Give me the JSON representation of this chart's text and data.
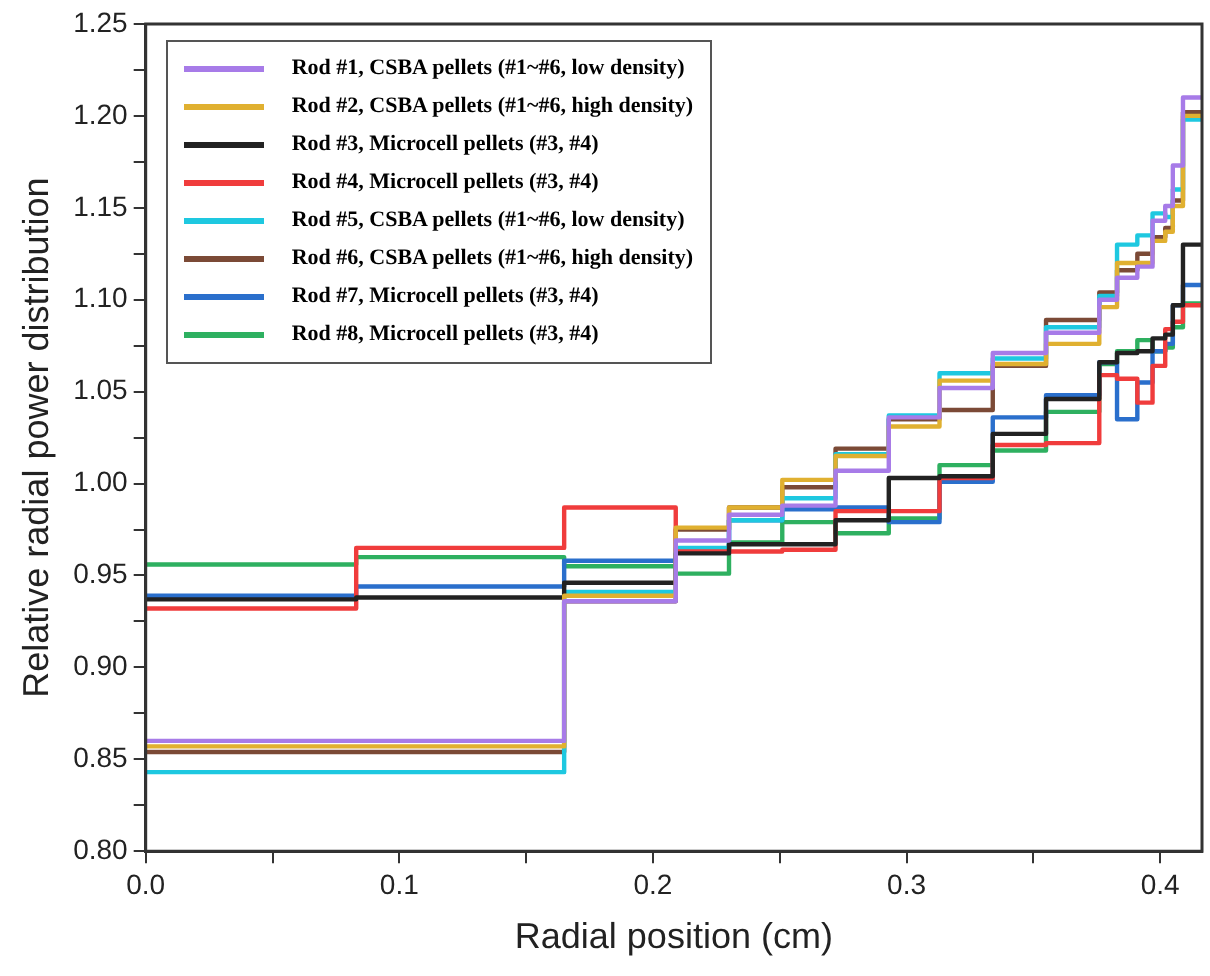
{
  "chart_data": {
    "type": "step",
    "xlabel": "Radial position (cm)",
    "ylabel": "Relative radial power distribution",
    "x": [
      0,
      0.083,
      0.165,
      0.209,
      0.23,
      0.251,
      0.272,
      0.293,
      0.313,
      0.334,
      0.355,
      0.376,
      0.383,
      0.391,
      0.397,
      0.402,
      0.405,
      0.409,
      0.4165
    ],
    "xlim": [
      0,
      0.4165
    ],
    "xticks": [
      {
        "value": 0,
        "label": "0.0"
      },
      {
        "value": 0.05,
        "label": null
      },
      {
        "value": 0.1,
        "label": "0.1"
      },
      {
        "value": 0.15,
        "label": null
      },
      {
        "value": 0.2,
        "label": "0.2"
      },
      {
        "value": 0.25,
        "label": null
      },
      {
        "value": 0.3,
        "label": "0.3"
      },
      {
        "value": 0.35,
        "label": null
      },
      {
        "value": 0.4,
        "label": "0.4"
      }
    ],
    "ylim": [
      0.8,
      1.25
    ],
    "yticks": [
      {
        "value": 0.8,
        "label": "0.80"
      },
      {
        "value": 0.825,
        "label": null
      },
      {
        "value": 0.85,
        "label": "0.85"
      },
      {
        "value": 0.875,
        "label": null
      },
      {
        "value": 0.9,
        "label": "0.90"
      },
      {
        "value": 0.925,
        "label": null
      },
      {
        "value": 0.95,
        "label": "0.95"
      },
      {
        "value": 0.975,
        "label": null
      },
      {
        "value": 1.0,
        "label": "1.00"
      },
      {
        "value": 1.025,
        "label": null
      },
      {
        "value": 1.05,
        "label": "1.05"
      },
      {
        "value": 1.075,
        "label": null
      },
      {
        "value": 1.1,
        "label": "1.10"
      },
      {
        "value": 1.125,
        "label": null
      },
      {
        "value": 1.15,
        "label": "1.15"
      },
      {
        "value": 1.175,
        "label": null
      },
      {
        "value": 1.2,
        "label": "1.20"
      },
      {
        "value": 1.225,
        "label": null
      },
      {
        "value": 1.25,
        "label": "1.25"
      }
    ],
    "grid": false,
    "legend": "top left",
    "marker": "none",
    "line_style": "solid",
    "series": [
      {
        "name": "Rod #1, CSBA pellets (#1~#6, low density)",
        "color": "#a77be8",
        "values": [
          0.86,
          0.86,
          0.936,
          0.969,
          0.983,
          0.988,
          1.007,
          1.036,
          1.052,
          1.071,
          1.082,
          1.1,
          1.112,
          1.118,
          1.143,
          1.151,
          1.173,
          1.21,
          1.21
        ]
      },
      {
        "name": "Rod #2, CSBA pellets (#1~#6, high density)",
        "color": "#e0b030",
        "values": [
          0.857,
          0.857,
          0.939,
          0.976,
          0.987,
          1.002,
          1.015,
          1.031,
          1.056,
          1.065,
          1.076,
          1.096,
          1.12,
          1.12,
          1.132,
          1.137,
          1.151,
          1.2,
          1.2
        ]
      },
      {
        "name": "Rod #3, Microcell pellets (#3, #4)",
        "color": "#222222",
        "values": [
          0.937,
          0.938,
          0.946,
          0.962,
          0.967,
          0.967,
          0.98,
          1.003,
          1.004,
          1.027,
          1.046,
          1.066,
          1.071,
          1.072,
          1.079,
          1.081,
          1.097,
          1.13,
          1.13
        ]
      },
      {
        "name": "Rod #4, Microcell pellets (#3, #4)",
        "color": "#f03c3c",
        "values": [
          0.932,
          0.965,
          0.987,
          0.963,
          0.963,
          0.964,
          0.985,
          0.985,
          1.003,
          1.021,
          1.022,
          1.059,
          1.057,
          1.044,
          1.064,
          1.084,
          1.088,
          1.097,
          1.097
        ]
      },
      {
        "name": "Rod #5, CSBA pellets (#1~#6, low density)",
        "color": "#1ec8e0",
        "values": [
          0.843,
          0.843,
          0.941,
          0.965,
          0.98,
          0.992,
          1.016,
          1.037,
          1.06,
          1.068,
          1.085,
          1.102,
          1.13,
          1.135,
          1.147,
          1.145,
          1.16,
          1.198,
          1.198
        ]
      },
      {
        "name": "Rod #6, CSBA pellets (#1~#6, high density)",
        "color": "#7b4a36",
        "values": [
          0.854,
          0.854,
          0.936,
          0.975,
          0.987,
          0.998,
          1.019,
          1.035,
          1.04,
          1.064,
          1.089,
          1.104,
          1.116,
          1.125,
          1.134,
          1.139,
          1.154,
          1.202,
          1.202
        ]
      },
      {
        "name": "Rod #7, Microcell pellets (#3, #4)",
        "color": "#2a6fcc",
        "values": [
          0.939,
          0.944,
          0.958,
          0.964,
          0.98,
          0.986,
          0.987,
          0.979,
          1.001,
          1.036,
          1.048,
          1.066,
          1.035,
          1.055,
          1.072,
          1.076,
          1.097,
          1.108,
          1.108
        ]
      },
      {
        "name": "Rod #8, Microcell pellets (#3, #4)",
        "color": "#2eb060",
        "values": [
          0.956,
          0.96,
          0.955,
          0.951,
          0.968,
          0.979,
          0.973,
          0.981,
          1.01,
          1.018,
          1.039,
          1.065,
          1.072,
          1.078,
          1.072,
          1.074,
          1.085,
          1.098,
          1.098
        ]
      }
    ]
  }
}
